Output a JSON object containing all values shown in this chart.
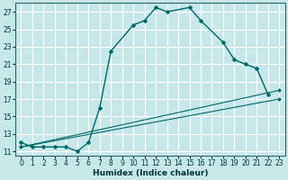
{
  "xlabel": "Humidex (Indice chaleur)",
  "bg_color": "#c8e8e8",
  "grid_color": "#ffffff",
  "line_color": "#006666",
  "xlim": [
    -0.5,
    23.5
  ],
  "ylim": [
    10.5,
    28.0
  ],
  "xticks": [
    0,
    1,
    2,
    3,
    4,
    5,
    6,
    7,
    8,
    9,
    10,
    11,
    12,
    13,
    14,
    15,
    16,
    17,
    18,
    19,
    20,
    21,
    22,
    23
  ],
  "yticks": [
    11,
    13,
    15,
    17,
    19,
    21,
    23,
    25,
    27
  ],
  "series": [
    {
      "x": [
        0,
        1,
        2,
        3,
        4,
        5,
        6,
        7,
        8,
        10,
        11,
        12,
        13,
        15,
        16,
        18,
        19,
        20,
        21,
        22
      ],
      "y": [
        12.0,
        11.5,
        11.5,
        11.5,
        11.5,
        11.0,
        12.0,
        16.0,
        22.5,
        25.5,
        26.0,
        27.5,
        27.0,
        27.5,
        26.0,
        23.5,
        21.5,
        21.0,
        20.5,
        17.5
      ]
    },
    {
      "x": [
        0,
        23
      ],
      "y": [
        11.5,
        18.0
      ]
    },
    {
      "x": [
        0,
        23
      ],
      "y": [
        11.5,
        17.0
      ]
    }
  ],
  "series_lw": [
    1.0,
    0.8,
    0.8
  ],
  "series_marker": [
    "D",
    "D",
    "D"
  ],
  "series_ms": [
    2.5,
    2.0,
    2.0
  ],
  "series_dotted": [
    false,
    false,
    false
  ]
}
